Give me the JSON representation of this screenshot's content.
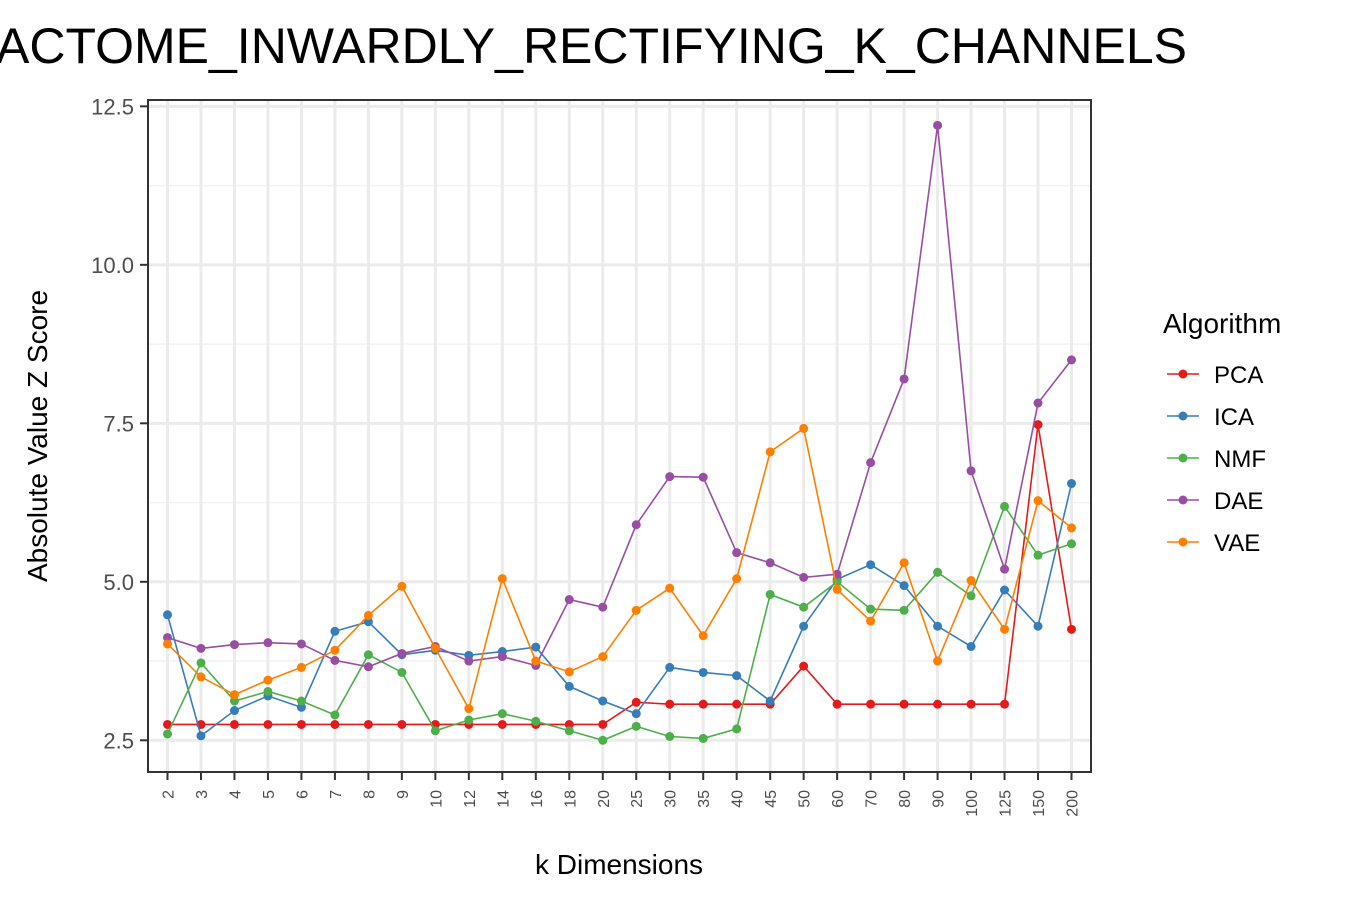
{
  "chart_data": {
    "type": "line",
    "title": "ACTOME_INWARDLY_RECTIFYING_K_CHANNELS",
    "xlabel": "k Dimensions",
    "ylabel": "Absolute Value Z Score",
    "ylim": [
      2.0,
      12.6
    ],
    "yticks": [
      "2.5",
      "5.0",
      "7.5",
      "10.0",
      "12.5"
    ],
    "categories": [
      "2",
      "3",
      "4",
      "5",
      "6",
      "7",
      "8",
      "9",
      "10",
      "12",
      "14",
      "16",
      "18",
      "20",
      "25",
      "30",
      "35",
      "40",
      "45",
      "50",
      "60",
      "70",
      "80",
      "90",
      "100",
      "125",
      "150",
      "200"
    ],
    "grid": true,
    "legend": {
      "title": "Algorithm",
      "position": "right"
    },
    "series": [
      {
        "name": "PCA",
        "color": "#e41a1c",
        "values": [
          2.75,
          2.75,
          2.75,
          2.75,
          2.75,
          2.75,
          2.75,
          2.75,
          2.75,
          2.75,
          2.75,
          2.75,
          2.75,
          2.75,
          3.1,
          3.07,
          3.07,
          3.07,
          3.07,
          3.67,
          3.07,
          3.07,
          3.07,
          3.07,
          3.07,
          3.07,
          7.48,
          4.25
        ]
      },
      {
        "name": "ICA",
        "color": "#377eb8",
        "values": [
          4.48,
          2.57,
          2.97,
          3.2,
          3.02,
          4.22,
          4.37,
          3.85,
          3.92,
          3.84,
          3.9,
          3.97,
          3.35,
          3.12,
          2.92,
          3.65,
          3.57,
          3.52,
          3.12,
          4.3,
          5.04,
          5.27,
          4.94,
          4.3,
          3.98,
          4.87,
          4.3,
          6.55
        ]
      },
      {
        "name": "NMF",
        "color": "#4daf4a",
        "values": [
          2.6,
          3.72,
          3.12,
          3.27,
          3.12,
          2.9,
          3.85,
          3.57,
          2.65,
          2.82,
          2.92,
          2.8,
          2.65,
          2.5,
          2.72,
          2.56,
          2.53,
          2.68,
          4.8,
          4.6,
          5.0,
          4.57,
          4.55,
          5.15,
          4.78,
          6.19,
          5.42,
          5.6
        ]
      },
      {
        "name": "DAE",
        "color": "#984ea3",
        "values": [
          4.12,
          3.95,
          4.01,
          4.04,
          4.02,
          3.76,
          3.66,
          3.87,
          3.98,
          3.75,
          3.82,
          3.68,
          4.72,
          4.6,
          5.9,
          6.66,
          6.65,
          5.46,
          5.3,
          5.07,
          5.12,
          6.88,
          8.2,
          12.2,
          6.75,
          5.2,
          7.82,
          8.5
        ]
      },
      {
        "name": "VAE",
        "color": "#ff7f00",
        "values": [
          4.02,
          3.5,
          3.22,
          3.45,
          3.65,
          3.92,
          4.47,
          4.93,
          3.95,
          3.0,
          5.05,
          3.75,
          3.58,
          3.82,
          4.55,
          4.9,
          4.15,
          5.05,
          7.05,
          7.42,
          4.88,
          4.38,
          5.3,
          3.75,
          5.02,
          4.25,
          6.28,
          5.85
        ]
      }
    ]
  }
}
